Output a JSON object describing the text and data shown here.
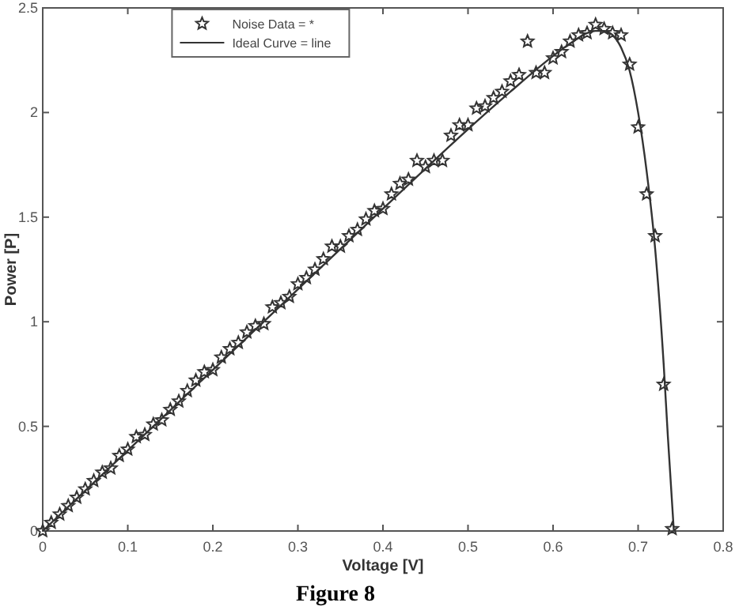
{
  "chart_data": {
    "type": "scatter",
    "xlabel": "Voltage [V]",
    "ylabel": "Power [P]",
    "xlim": [
      0,
      0.8
    ],
    "ylim": [
      0,
      2.5
    ],
    "xticks": [
      0,
      0.1,
      0.2,
      0.3,
      0.4,
      0.5,
      0.6,
      0.7,
      0.8
    ],
    "yticks": [
      0,
      0.5,
      1,
      1.5,
      2,
      2.5
    ],
    "grid": false,
    "legend": "top",
    "annotations": [
      "Figure 8"
    ],
    "series": [
      {
        "name": "Noise Data = *",
        "marker": "star",
        "color": "#333333",
        "x": [
          0,
          0.01,
          0.02,
          0.03,
          0.04,
          0.05,
          0.06,
          0.07,
          0.08,
          0.09,
          0.1,
          0.11,
          0.12,
          0.13,
          0.14,
          0.15,
          0.16,
          0.17,
          0.18,
          0.19,
          0.2,
          0.21,
          0.22,
          0.23,
          0.24,
          0.25,
          0.26,
          0.27,
          0.28,
          0.29,
          0.3,
          0.31,
          0.32,
          0.33,
          0.34,
          0.35,
          0.36,
          0.37,
          0.38,
          0.39,
          0.4,
          0.41,
          0.42,
          0.43,
          0.44,
          0.45,
          0.46,
          0.47,
          0.48,
          0.49,
          0.5,
          0.51,
          0.52,
          0.53,
          0.54,
          0.55,
          0.56,
          0.57,
          0.58,
          0.59,
          0.6,
          0.61,
          0.62,
          0.63,
          0.64,
          0.65,
          0.66,
          0.67,
          0.68,
          0.69,
          0.7,
          0.71,
          0.72,
          0.73,
          0.74
        ],
        "values": [
          0,
          0.04,
          0.08,
          0.12,
          0.16,
          0.2,
          0.24,
          0.28,
          0.3,
          0.36,
          0.39,
          0.45,
          0.46,
          0.51,
          0.53,
          0.58,
          0.62,
          0.67,
          0.72,
          0.76,
          0.77,
          0.83,
          0.87,
          0.9,
          0.95,
          0.98,
          0.99,
          1.07,
          1.09,
          1.12,
          1.18,
          1.21,
          1.25,
          1.3,
          1.36,
          1.36,
          1.41,
          1.44,
          1.49,
          1.53,
          1.54,
          1.61,
          1.66,
          1.68,
          1.77,
          1.74,
          1.77,
          1.77,
          1.89,
          1.94,
          1.94,
          2.02,
          2.03,
          2.07,
          2.1,
          2.15,
          2.18,
          2.34,
          2.19,
          2.19,
          2.26,
          2.29,
          2.34,
          2.37,
          2.38,
          2.42,
          2.4,
          2.38,
          2.37,
          2.23,
          1.93,
          1.61,
          1.41,
          0.7,
          0.01
        ]
      },
      {
        "name": "Ideal Curve = line",
        "type": "line",
        "marker": "none",
        "line_style": "solid",
        "color": "#333333",
        "x": [
          0,
          0.1,
          0.2,
          0.3,
          0.4,
          0.5,
          0.55,
          0.6,
          0.62,
          0.64,
          0.65,
          0.66,
          0.67,
          0.68,
          0.69,
          0.7,
          0.71,
          0.72,
          0.73,
          0.735,
          0.742
        ],
        "values": [
          0,
          0.385,
          0.77,
          1.155,
          1.54,
          1.92,
          2.1,
          2.27,
          2.33,
          2.38,
          2.39,
          2.39,
          2.37,
          2.31,
          2.2,
          2.0,
          1.72,
          1.35,
          0.8,
          0.45,
          0
        ]
      }
    ]
  }
}
